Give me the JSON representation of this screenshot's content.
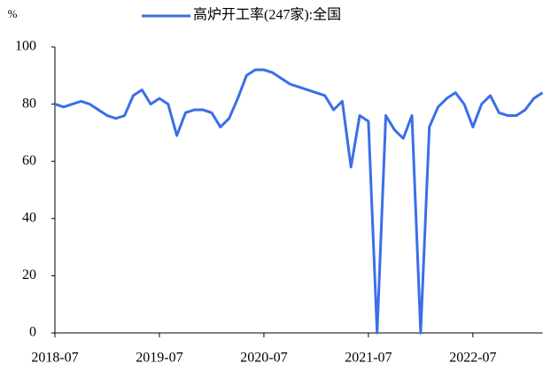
{
  "chart_data": {
    "type": "line",
    "y_label": "%",
    "categories": [
      "2018-07",
      null,
      null,
      null,
      null,
      null,
      null,
      null,
      null,
      null,
      null,
      null,
      "2019-07",
      null,
      null,
      null,
      null,
      null,
      null,
      null,
      null,
      null,
      null,
      null,
      "2020-07",
      null,
      null,
      null,
      null,
      null,
      null,
      null,
      null,
      null,
      null,
      null,
      "2021-07",
      null,
      null,
      null,
      null,
      null,
      null,
      null,
      null,
      null,
      null,
      null,
      "2022-07",
      null,
      null,
      null,
      null,
      null,
      null,
      null,
      null
    ],
    "series": [
      {
        "name": "高炉开工率(247家):全国",
        "color": "#3b6ee8",
        "values": [
          80,
          79,
          80,
          81,
          80,
          78,
          76,
          75,
          76,
          83,
          85,
          80,
          82,
          80,
          69,
          77,
          78,
          78,
          77,
          72,
          75,
          82,
          90,
          92,
          92,
          91,
          89,
          87,
          86,
          85,
          84,
          83,
          78,
          81,
          58,
          76,
          74,
          0,
          76,
          71,
          68,
          76,
          0,
          72,
          79,
          82,
          84,
          80,
          72,
          80,
          83,
          77,
          76,
          76,
          78,
          82,
          84
        ]
      }
    ],
    "ylim": [
      0,
      100
    ],
    "yticks": [
      0,
      20,
      40,
      60,
      80,
      100
    ],
    "legend": "top",
    "grid": false
  }
}
